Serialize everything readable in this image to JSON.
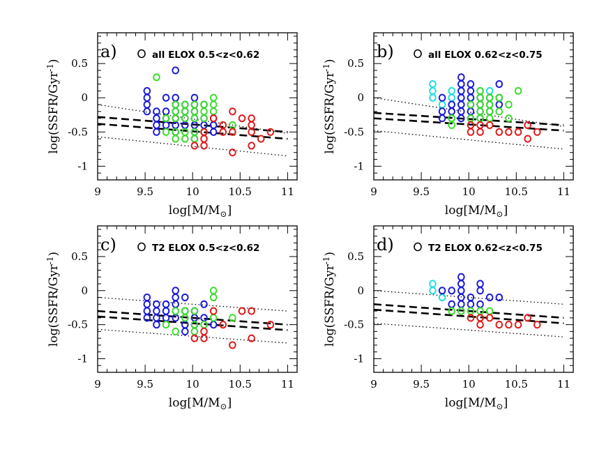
{
  "colors": {
    "blue": "#1a1ad9",
    "green": "#3cdc2c",
    "red": "#e01a1a",
    "cyan": "#22dede",
    "axis": "#000000"
  },
  "chart_data": [
    {
      "type": "scatter",
      "panel_label": "a)",
      "legend": "all ELOX  0.5<z<0.62",
      "xlabel": "log[M/M",
      "xlabel_sub": "⊙",
      "ylabel": "log(SSFR/Gyr",
      "ylabel_sup": "-1",
      "xlim": [
        9,
        11.1
      ],
      "ylim": [
        -1.2,
        0.95
      ],
      "xticks": [
        9,
        9.5,
        10,
        10.5,
        11
      ],
      "xtick_labels": [
        "9",
        "9.5",
        "10",
        "10.5",
        "11"
      ],
      "yticks": [
        -1,
        -0.5,
        0,
        0.5
      ],
      "ytick_labels": [
        "-1",
        "-0.5",
        "0",
        "0.5"
      ],
      "lines": [
        {
          "style": "dotted",
          "x": [
            9,
            11
          ],
          "y": [
            -0.1,
            -0.52
          ]
        },
        {
          "style": "dotted",
          "x": [
            9,
            11
          ],
          "y": [
            -0.57,
            -0.85
          ]
        },
        {
          "style": "dashed",
          "x": [
            9,
            11
          ],
          "y": [
            -0.28,
            -0.5
          ]
        },
        {
          "style": "dashed",
          "x": [
            9,
            11
          ],
          "y": [
            -0.38,
            -0.6
          ]
        }
      ],
      "series": [
        {
          "color": "blue",
          "x": [
            9.52,
            9.52,
            9.52,
            9.52,
            9.62,
            9.62,
            9.62,
            9.62,
            9.72,
            9.72,
            9.72,
            9.72,
            9.82,
            9.82,
            9.82,
            9.82,
            9.82,
            9.82,
            9.82,
            9.92,
            9.92,
            9.92,
            9.92,
            10.02,
            10.02,
            10.02,
            10.02,
            10.02,
            10.02,
            10.02,
            10.12,
            10.12,
            10.12,
            10.12,
            10.22,
            10.22,
            10.22
          ],
          "y": [
            0.1,
            0,
            -0.1,
            -0.2,
            -0.2,
            -0.3,
            -0.4,
            -0.5,
            0,
            -0.2,
            -0.3,
            -0.4,
            0.4,
            0,
            -0.1,
            -0.2,
            -0.3,
            -0.4,
            -0.5,
            -0.1,
            -0.2,
            -0.3,
            -0.4,
            0,
            -0.1,
            -0.2,
            -0.3,
            -0.4,
            -0.5,
            -0.6,
            -0.1,
            -0.3,
            -0.4,
            -0.5,
            -0.3,
            -0.4,
            -0.5
          ]
        },
        {
          "color": "green",
          "x": [
            9.62,
            9.72,
            9.72,
            9.82,
            9.82,
            9.82,
            9.82,
            9.82,
            9.92,
            9.92,
            9.92,
            9.92,
            9.92,
            10.02,
            10.02,
            10.02,
            10.02,
            10.02,
            10.12,
            10.12,
            10.12,
            10.12,
            10.22,
            10.22,
            10.22,
            10.42
          ],
          "y": [
            0.3,
            -0.3,
            -0.5,
            -0.1,
            -0.2,
            -0.3,
            -0.5,
            -0.6,
            -0.1,
            -0.2,
            -0.3,
            -0.5,
            -0.6,
            -0.1,
            -0.2,
            -0.3,
            -0.5,
            -0.6,
            -0.1,
            -0.2,
            -0.3,
            -0.5,
            0,
            -0.1,
            -0.2,
            -0.4
          ]
        },
        {
          "color": "red",
          "x": [
            10.02,
            10.12,
            10.12,
            10.12,
            10.22,
            10.32,
            10.32,
            10.42,
            10.42,
            10.42,
            10.52,
            10.62,
            10.62,
            10.62,
            10.62,
            10.72,
            10.82
          ],
          "y": [
            -0.7,
            -0.5,
            -0.6,
            -0.7,
            -0.3,
            -0.4,
            -0.5,
            -0.2,
            -0.5,
            -0.8,
            -0.3,
            -0.3,
            -0.5,
            -0.7,
            -0.4,
            -0.6,
            -0.5
          ]
        }
      ]
    },
    {
      "type": "scatter",
      "panel_label": "b)",
      "legend": "all ELOX  0.62<z<0.75",
      "xlabel": "log[M/M",
      "xlabel_sub": "⊙",
      "ylabel": "log(SSFR/Gyr",
      "ylabel_sup": "-1",
      "xlim": [
        9,
        11.1
      ],
      "ylim": [
        -1.2,
        0.95
      ],
      "xticks": [
        9,
        9.5,
        10,
        10.5,
        11
      ],
      "xtick_labels": [
        "9",
        "9.5",
        "10",
        "10.5",
        "11"
      ],
      "yticks": [
        -1,
        -0.5,
        0,
        0.5
      ],
      "ytick_labels": [
        "-1",
        "-0.5",
        "0",
        "0.5"
      ],
      "lines": [
        {
          "style": "dotted",
          "x": [
            9,
            11
          ],
          "y": [
            0,
            -0.42
          ]
        },
        {
          "style": "dotted",
          "x": [
            9,
            11
          ],
          "y": [
            -0.48,
            -0.75
          ]
        },
        {
          "style": "dashed",
          "x": [
            9,
            11
          ],
          "y": [
            -0.22,
            -0.4
          ]
        },
        {
          "style": "dashed",
          "x": [
            9,
            11
          ],
          "y": [
            -0.3,
            -0.48
          ]
        }
      ],
      "series": [
        {
          "color": "cyan",
          "x": [
            9.62,
            9.62,
            9.62,
            9.72,
            9.82,
            9.82,
            9.82,
            9.92,
            9.92,
            10.02,
            10.12,
            10.22
          ],
          "y": [
            0.2,
            0.1,
            0,
            -0.1,
            0.1,
            0,
            -0.1,
            -0.1,
            0,
            0,
            0.1,
            0.1
          ]
        },
        {
          "color": "blue",
          "x": [
            9.72,
            9.72,
            9.72,
            9.82,
            9.82,
            9.82,
            9.92,
            9.92,
            9.92,
            9.92,
            9.92,
            9.92,
            9.92,
            10.02,
            10.02,
            10.02,
            10.02,
            10.02,
            10.02,
            10.12,
            10.12,
            10.12,
            10.12,
            10.22,
            10.22,
            10.22,
            10.32,
            10.32,
            10.32
          ],
          "y": [
            0,
            -0.2,
            -0.3,
            -0.1,
            -0.2,
            -0.3,
            0.3,
            0.2,
            0.1,
            0,
            -0.1,
            -0.2,
            -0.3,
            0.2,
            0.1,
            0,
            -0.1,
            -0.2,
            -0.3,
            0,
            -0.1,
            -0.2,
            -0.3,
            0,
            -0.1,
            -0.2,
            0.2,
            0,
            -0.1
          ]
        },
        {
          "color": "green",
          "x": [
            9.82,
            9.82,
            10.02,
            10.02,
            10.12,
            10.12,
            10.12,
            10.12,
            10.12,
            10.22,
            10.22,
            10.22,
            10.22,
            10.32,
            10.32,
            10.42,
            10.42,
            10.52
          ],
          "y": [
            -0.3,
            -0.4,
            -0.1,
            -0.3,
            0.1,
            0,
            -0.1,
            -0.2,
            -0.3,
            0,
            -0.1,
            -0.2,
            -0.3,
            0,
            -0.2,
            -0.1,
            -0.3,
            0.1
          ]
        },
        {
          "color": "red",
          "x": [
            10.02,
            10.02,
            10.12,
            10.12,
            10.22,
            10.32,
            10.42,
            10.52,
            10.62,
            10.62,
            10.72
          ],
          "y": [
            -0.4,
            -0.5,
            -0.4,
            -0.5,
            -0.4,
            -0.5,
            -0.5,
            -0.5,
            -0.4,
            -0.6,
            -0.5
          ]
        }
      ]
    },
    {
      "type": "scatter",
      "panel_label": "c)",
      "legend": "T2  ELOX  0.5<z<0.62",
      "xlabel": "log[M/M",
      "xlabel_sub": "⊙",
      "ylabel": "log(SSFR/Gyr",
      "ylabel_sup": "-1",
      "xlim": [
        9,
        11.1
      ],
      "ylim": [
        -1.2,
        0.95
      ],
      "xticks": [
        9,
        9.5,
        10,
        10.5,
        11
      ],
      "xtick_labels": [
        "9",
        "9.5",
        "10",
        "10.5",
        "11"
      ],
      "yticks": [
        -1,
        -0.5,
        0,
        0.5
      ],
      "ytick_labels": [
        "-1",
        "-0.5",
        "0",
        "0.5"
      ],
      "lines": [
        {
          "style": "dotted",
          "x": [
            9,
            11
          ],
          "y": [
            -0.1,
            -0.3
          ]
        },
        {
          "style": "dotted",
          "x": [
            9,
            11
          ],
          "y": [
            -0.57,
            -0.77
          ]
        },
        {
          "style": "dashed",
          "x": [
            9,
            11
          ],
          "y": [
            -0.3,
            -0.5
          ]
        },
        {
          "style": "dashed",
          "x": [
            9,
            11
          ],
          "y": [
            -0.38,
            -0.58
          ]
        }
      ],
      "series": [
        {
          "color": "blue",
          "x": [
            9.52,
            9.52,
            9.52,
            9.52,
            9.62,
            9.62,
            9.62,
            9.62,
            9.72,
            9.72,
            9.72,
            9.82,
            9.82,
            9.82,
            9.82,
            9.92,
            9.92,
            9.92,
            9.92,
            10.02,
            10.02,
            10.02,
            10.12,
            10.12,
            10.22
          ],
          "y": [
            -0.1,
            -0.2,
            -0.3,
            -0.4,
            -0.2,
            -0.3,
            -0.4,
            -0.5,
            -0.2,
            -0.3,
            -0.4,
            0,
            -0.1,
            -0.2,
            -0.4,
            -0.1,
            -0.3,
            -0.5,
            -0.6,
            -0.3,
            -0.4,
            -0.5,
            -0.2,
            -0.4,
            -0.5
          ]
        },
        {
          "color": "green",
          "x": [
            9.72,
            9.82,
            9.82,
            9.92,
            9.92,
            10.02,
            10.02,
            10.02,
            10.12,
            10.22,
            10.22,
            10.22,
            10.42
          ],
          "y": [
            -0.5,
            -0.3,
            -0.6,
            -0.3,
            -0.4,
            -0.3,
            -0.5,
            -0.6,
            -0.5,
            0,
            -0.1,
            -0.4,
            -0.4
          ]
        },
        {
          "color": "red",
          "x": [
            10.02,
            10.12,
            10.12,
            10.22,
            10.32,
            10.42,
            10.52,
            10.62,
            10.62,
            10.82
          ],
          "y": [
            -0.7,
            -0.6,
            -0.7,
            -0.3,
            -0.5,
            -0.8,
            -0.3,
            -0.3,
            -0.7,
            -0.5
          ]
        }
      ]
    },
    {
      "type": "scatter",
      "panel_label": "d)",
      "legend": "T2  ELOX  0.62<z<0.75",
      "xlabel": "log[M/M",
      "xlabel_sub": "⊙",
      "ylabel": "log(SSFR/Gyr",
      "ylabel_sup": "-1",
      "xlim": [
        9,
        11.1
      ],
      "ylim": [
        -1.2,
        0.95
      ],
      "xticks": [
        9,
        9.5,
        10,
        10.5,
        11
      ],
      "xtick_labels": [
        "9",
        "9.5",
        "10",
        "10.5",
        "11"
      ],
      "yticks": [
        -1,
        -0.5,
        0,
        0.5
      ],
      "ytick_labels": [
        "-1",
        "-0.5",
        "0",
        "0.5"
      ],
      "lines": [
        {
          "style": "dotted",
          "x": [
            9,
            11
          ],
          "y": [
            0,
            -0.2
          ]
        },
        {
          "style": "dotted",
          "x": [
            9,
            11
          ],
          "y": [
            -0.48,
            -0.68
          ]
        },
        {
          "style": "dashed",
          "x": [
            9,
            11
          ],
          "y": [
            -0.2,
            -0.4
          ]
        },
        {
          "style": "dashed",
          "x": [
            9,
            11
          ],
          "y": [
            -0.28,
            -0.48
          ]
        }
      ],
      "series": [
        {
          "color": "cyan",
          "x": [
            9.62,
            9.62,
            9.72
          ],
          "y": [
            0.1,
            0,
            -0.1
          ]
        },
        {
          "color": "blue",
          "x": [
            9.72,
            9.82,
            9.82,
            9.92,
            9.92,
            9.92,
            9.92,
            9.92,
            10.02,
            10.02,
            10.12,
            10.12,
            10.12,
            10.22,
            10.32
          ],
          "y": [
            0,
            0,
            -0.2,
            0.2,
            0.1,
            0,
            -0.1,
            -0.2,
            -0.1,
            -0.2,
            0.1,
            0,
            -0.2,
            -0.1,
            -0.1
          ]
        },
        {
          "color": "green",
          "x": [
            9.82,
            9.92,
            10.02,
            10.12,
            10.12,
            10.22
          ],
          "y": [
            -0.3,
            -0.3,
            -0.3,
            -0.3,
            -0.4,
            -0.3
          ]
        },
        {
          "color": "red",
          "x": [
            10.02,
            10.12,
            10.12,
            10.22,
            10.32,
            10.42,
            10.52,
            10.62,
            10.72
          ],
          "y": [
            -0.4,
            -0.4,
            -0.5,
            -0.4,
            -0.5,
            -0.5,
            -0.5,
            -0.4,
            -0.5
          ]
        }
      ]
    }
  ]
}
